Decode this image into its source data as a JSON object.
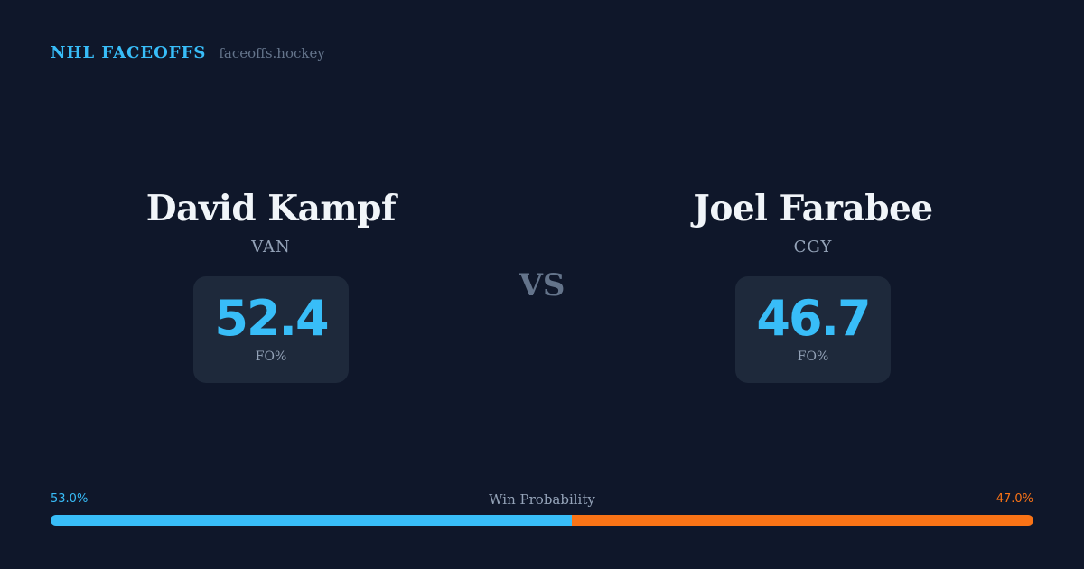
{
  "brand": {
    "title": "NHL FACEOFFS",
    "site": "faceoffs.hockey"
  },
  "players": [
    {
      "name": "David Kampf",
      "team": "VAN",
      "stat_value": "52.4",
      "stat_label": "FO%"
    },
    {
      "name": "Joel Farabee",
      "team": "CGY",
      "stat_value": "46.7",
      "stat_label": "FO%"
    }
  ],
  "vs_label": "VS",
  "win_probability": {
    "label": "Win Probability",
    "left_text": "53.0%",
    "right_text": "47.0%",
    "left_fraction": 0.53,
    "left_color": "#38bdf8",
    "right_color": "#f97316"
  }
}
